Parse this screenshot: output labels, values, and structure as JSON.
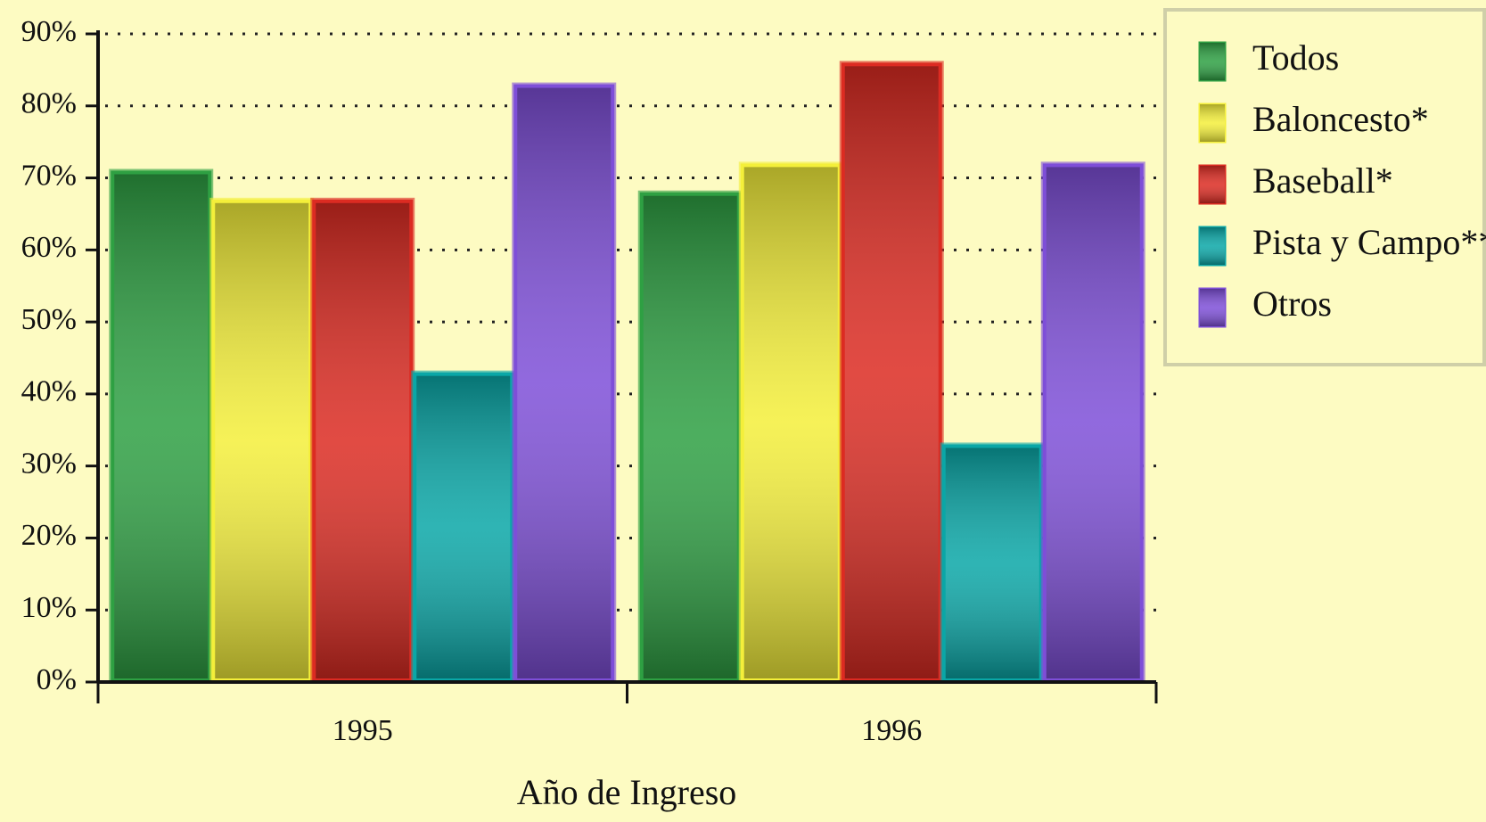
{
  "chart_data": {
    "type": "bar",
    "x_label": "Año de Ingreso",
    "categories": [
      "1995",
      "1996"
    ],
    "series": [
      {
        "name": "Todos",
        "color": "#2ea043",
        "values": [
          71,
          68
        ]
      },
      {
        "name": "Baloncesto*",
        "color": "#f4ef3a",
        "values": [
          67,
          72
        ]
      },
      {
        "name": "Baseball*",
        "color": "#dc2b22",
        "values": [
          67,
          86
        ]
      },
      {
        "name": "Pista y Campo**",
        "color": "#0aa7a7",
        "values": [
          43,
          33
        ]
      },
      {
        "name": "Otros",
        "color": "#7e4fd8",
        "values": [
          83,
          72
        ]
      }
    ],
    "ylim": [
      0,
      90
    ],
    "yticks": [
      {
        "value": 0,
        "label": "0%"
      },
      {
        "value": 10,
        "label": "10%"
      },
      {
        "value": 20,
        "label": "20%"
      },
      {
        "value": 30,
        "label": "30%"
      },
      {
        "value": 40,
        "label": "40%"
      },
      {
        "value": 50,
        "label": "50%"
      },
      {
        "value": 60,
        "label": "60%"
      },
      {
        "value": 70,
        "label": "70%"
      },
      {
        "value": 80,
        "label": "80%"
      },
      {
        "value": 90,
        "label": "90%"
      }
    ],
    "grid": true,
    "legend": "upper right"
  }
}
